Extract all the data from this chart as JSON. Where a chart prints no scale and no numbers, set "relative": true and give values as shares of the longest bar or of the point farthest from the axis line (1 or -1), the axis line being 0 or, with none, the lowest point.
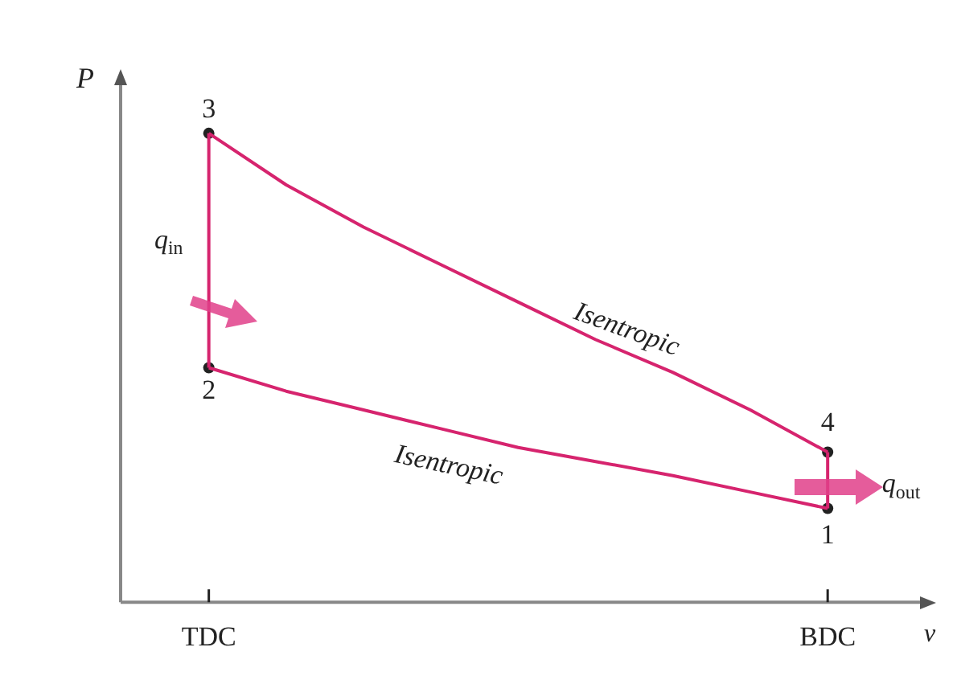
{
  "chart_data": {
    "type": "line",
    "xlabel": "v",
    "ylabel": "P",
    "relative": true,
    "grid": false,
    "legend": false,
    "tick_labels": "x",
    "categories": [
      "TDC",
      null,
      null,
      null,
      null,
      null,
      null,
      null,
      "BDC"
    ],
    "series": [
      {
        "color": "#d6246e",
        "marker": "none",
        "line_style": "solid",
        "values": [
          1,
          0.89,
          0.8,
          0.72,
          0.64,
          0.56,
          0.49,
          0.41,
          0.32
        ]
      },
      {
        "color": "#d6246e",
        "marker": "none",
        "line_style": "solid",
        "values": [
          0.5,
          0.45,
          0.41,
          0.37,
          0.33,
          0.3,
          0.27,
          0.235,
          0.2
        ]
      },
      {
        "type": "scatter",
        "color": "#222222",
        "marker": "circle",
        "x": [
          "BDC",
          "TDC",
          "TDC",
          "BDC"
        ],
        "values": [
          0.2,
          0.5,
          1,
          0.32
        ]
      }
    ],
    "annotations": [
      "1",
      "2",
      "3",
      "4",
      "q$_{in}$",
      "q$_{out}$",
      "Isentropic",
      "Isentropic"
    ]
  }
}
